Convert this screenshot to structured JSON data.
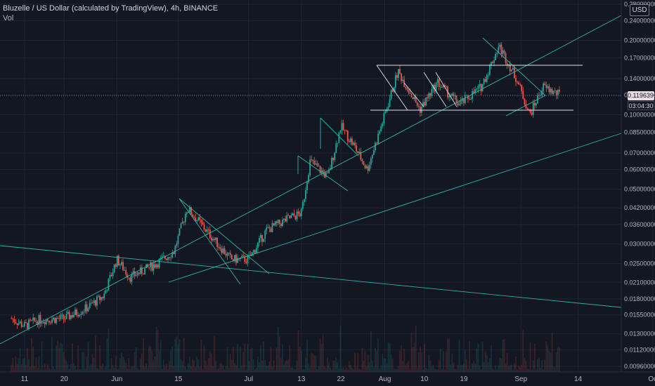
{
  "header": {
    "symbol_line": "Bluzelle / US Dollar (calculated by TradingView), 4h, BINANCE",
    "volume_label": "Vol",
    "currency_button": "USD"
  },
  "price_labels": {
    "last_price": "0.11963962",
    "countdown": "03:04:30"
  },
  "colors": {
    "background": "#131722",
    "grid": "#1f2433",
    "up_candle": "#26a69a",
    "down_candle": "#ef5350",
    "trendline": "#2bb5a6",
    "pattern_line": "#e0e3eb"
  },
  "chart_data": {
    "type": "candlestick",
    "title": "Bluzelle / US Dollar (calculated by TradingView), 4h, BINANCE",
    "y_scale": "log",
    "ylim": [
      0.0092,
      0.29
    ],
    "y_ticks": [
      "0.28000000",
      "0.24000000",
      "0.20000000",
      "0.17000000",
      "0.14000000",
      "0.12000000",
      "0.10000000",
      "0.08500000",
      "0.07000000",
      "0.06000000",
      "0.05000000",
      "0.04200000",
      "0.03600000",
      "0.03000000",
      "0.02500000",
      "0.02100000",
      "0.01800000",
      "0.01550000",
      "0.01300000",
      "0.01120000",
      "0.00960000"
    ],
    "x_ticks": [
      "11",
      "20",
      "Jun",
      "15",
      "Jul",
      "13",
      "22",
      "Aug",
      "10",
      "19",
      "Sep",
      "14",
      "Oc"
    ],
    "last_price": 0.11963962,
    "price_path": [
      {
        "x": "May 8",
        "close": 0.015
      },
      {
        "x": "May 11",
        "close": 0.014
      },
      {
        "x": "May 14",
        "close": 0.0148
      },
      {
        "x": "May 20",
        "close": 0.015
      },
      {
        "x": "May 25",
        "close": 0.0165
      },
      {
        "x": "May 29",
        "close": 0.0185
      },
      {
        "x": "Jun 1",
        "close": 0.026
      },
      {
        "x": "Jun 4",
        "close": 0.022
      },
      {
        "x": "Jun 10",
        "close": 0.025
      },
      {
        "x": "Jun 14",
        "close": 0.028
      },
      {
        "x": "Jun 17",
        "close": 0.042
      },
      {
        "x": "Jun 22",
        "close": 0.033
      },
      {
        "x": "Jun 27",
        "close": 0.026
      },
      {
        "x": "Jul 1",
        "close": 0.026
      },
      {
        "x": "Jul 5",
        "close": 0.034
      },
      {
        "x": "Jul 10",
        "close": 0.038
      },
      {
        "x": "Jul 13",
        "close": 0.04
      },
      {
        "x": "Jul 15",
        "close": 0.065
      },
      {
        "x": "Jul 19",
        "close": 0.056
      },
      {
        "x": "Jul 22",
        "close": 0.09
      },
      {
        "x": "Jul 25",
        "close": 0.075
      },
      {
        "x": "Jul 28",
        "close": 0.06
      },
      {
        "x": "Aug 1",
        "close": 0.1
      },
      {
        "x": "Aug 4",
        "close": 0.15
      },
      {
        "x": "Aug 9",
        "close": 0.105
      },
      {
        "x": "Aug 13",
        "close": 0.135
      },
      {
        "x": "Aug 18",
        "close": 0.11
      },
      {
        "x": "Aug 23",
        "close": 0.13
      },
      {
        "x": "Aug 27",
        "close": 0.19
      },
      {
        "x": "Aug 31",
        "close": 0.14
      },
      {
        "x": "Sep 3",
        "close": 0.1
      },
      {
        "x": "Sep 6",
        "close": 0.13
      },
      {
        "x": "Sep 10",
        "close": 0.1196
      }
    ]
  }
}
